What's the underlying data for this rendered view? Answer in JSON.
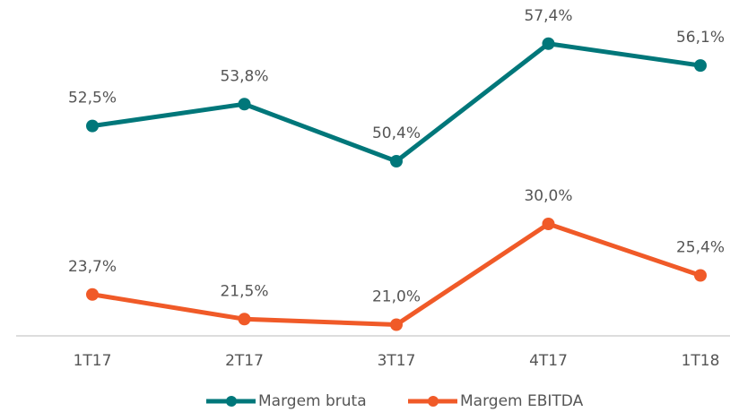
{
  "chart_data": {
    "type": "line",
    "categories": [
      "1T17",
      "2T17",
      "3T17",
      "4T17",
      "1T18"
    ],
    "series": [
      {
        "name": "Margem bruta",
        "color": "#00777a",
        "values": [
          52.5,
          53.8,
          50.4,
          57.4,
          56.1
        ],
        "value_labels": [
          "52,5%",
          "53,8%",
          "50,4%",
          "57,4%",
          "56,1%"
        ]
      },
      {
        "name": "Margem EBITDA",
        "color": "#f05a28",
        "axis": "y2",
        "values": [
          23.7,
          21.5,
          21.0,
          30.0,
          25.4
        ],
        "value_labels": [
          "23,7%",
          "21,5%",
          "21,0%",
          "30,0%",
          "25,4%"
        ]
      }
    ],
    "ylim": [
      40,
      60
    ],
    "y2lim": [
      20,
      50
    ],
    "legend": "bottom"
  }
}
